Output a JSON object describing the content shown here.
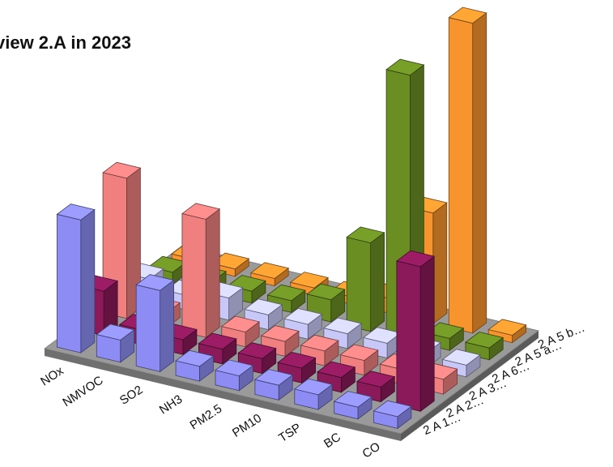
{
  "chart_data": {
    "type": "bar3d",
    "title": "view 2.A in 2023",
    "categories": [
      "NOx",
      "NMVOC",
      "SO2",
      "NH3",
      "PM2.5",
      "PM10",
      "TSP",
      "BC",
      "CO"
    ],
    "series": [
      {
        "name": "2 A 1…",
        "color": "#8c8cf4",
        "values": [
          0.9,
          0.15,
          0.55,
          0.1,
          0.1,
          0.1,
          0.1,
          0.08,
          0.08
        ]
      },
      {
        "name": "2 A 2…",
        "color": "#8b1a5a",
        "values": [
          0.3,
          0.1,
          0.1,
          0.1,
          0.1,
          0.1,
          0.1,
          0.1,
          0.98
        ]
      },
      {
        "name": "2 A 3…",
        "color": "#f08080",
        "values": [
          0.95,
          0.1,
          0.8,
          0.1,
          0.1,
          0.1,
          0.1,
          0.1,
          0.1
        ]
      },
      {
        "name": "2 A 6…",
        "color": "#c8c8f8",
        "values": [
          0.15,
          0.1,
          0.15,
          0.1,
          0.1,
          0.1,
          0.1,
          0.1,
          0.08
        ]
      },
      {
        "name": "2 A 5 a…",
        "color": "#6b8e23",
        "values": [
          0.08,
          0.08,
          0.08,
          0.08,
          0.15,
          0.6,
          1.8,
          0.08,
          0.08
        ]
      },
      {
        "name": "2 A 5 b…",
        "color": "#f7942e",
        "values": [
          0.05,
          0.05,
          0.05,
          0.05,
          0.05,
          0.1,
          0.75,
          2.1,
          0.05
        ]
      }
    ]
  }
}
